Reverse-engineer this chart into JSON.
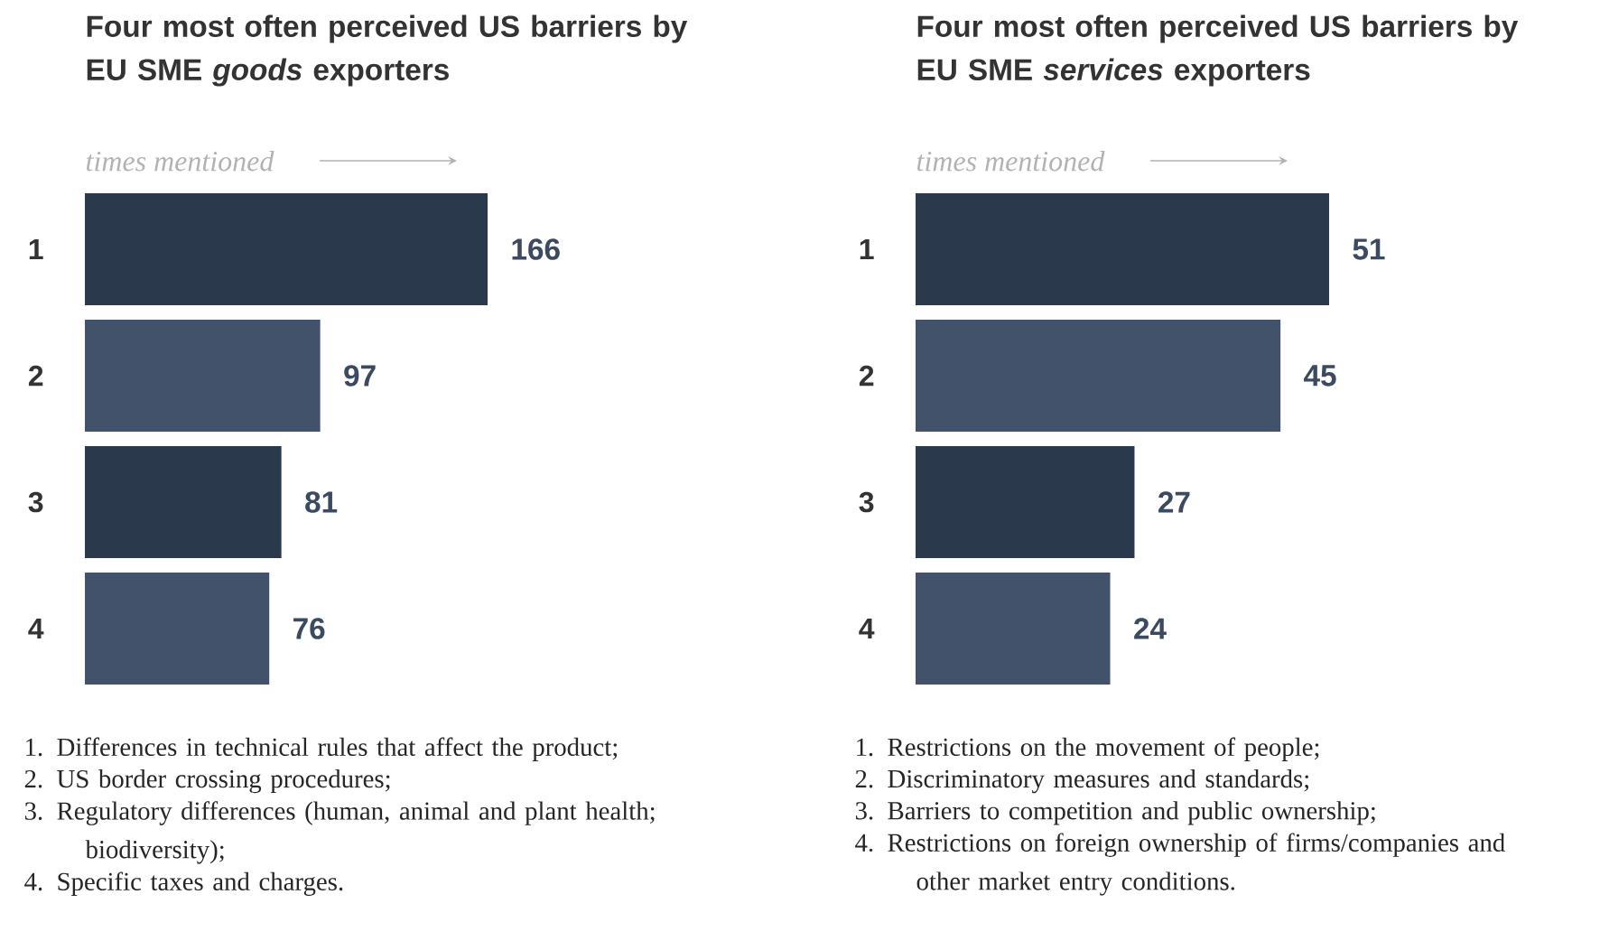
{
  "chart_data": [
    {
      "type": "bar",
      "orientation": "horizontal",
      "title": "Four most often perceived US barriers by EU SME *goods* exporters",
      "xlabel": "times mentioned",
      "categories": [
        "1",
        "2",
        "3",
        "4"
      ],
      "values": [
        166,
        97,
        81,
        76
      ],
      "colors": [
        "#2a394c",
        "#41526a",
        "#2a394c",
        "#41526a"
      ],
      "tick_labels": "y",
      "data_labels": true,
      "annotations": [
        "1. Differences in technical rules that affect the product;",
        "2. US border crossing procedures;",
        "3. Regulatory differences (human, animal and plant health; biodiversity);",
        "4. Specific taxes and charges."
      ]
    },
    {
      "type": "bar",
      "orientation": "horizontal",
      "title": "Four most often perceived US barriers by EU SME *services* exporters",
      "xlabel": "times mentioned",
      "categories": [
        "1",
        "2",
        "3",
        "4"
      ],
      "values": [
        51,
        45,
        27,
        24
      ],
      "colors": [
        "#2a394c",
        "#41526a",
        "#2a394c",
        "#41526a"
      ],
      "tick_labels": "y",
      "data_labels": true,
      "annotations": [
        "1. Restrictions on the movement of people;",
        "2. Discriminatory measures and standards;",
        "3. Barriers to competition and public ownership;",
        "4. Restrictions on foreign ownership of firms/companies and other market entry conditions."
      ]
    }
  ]
}
